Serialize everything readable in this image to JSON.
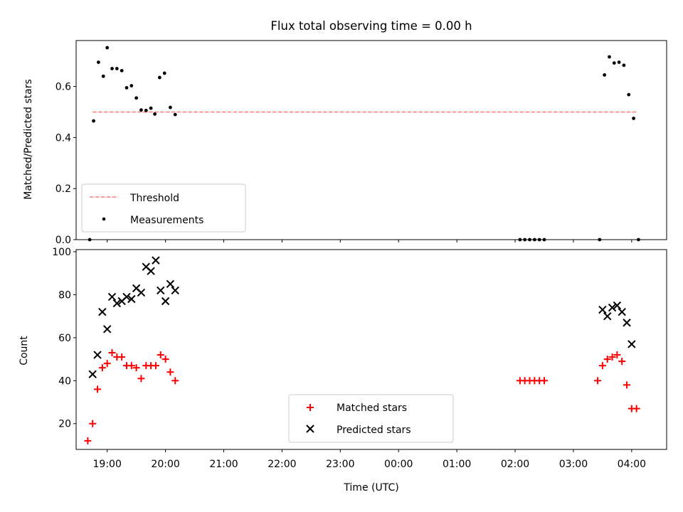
{
  "chart_data": [
    {
      "type": "scatter",
      "title": "Flux total observing time = 0.00 h",
      "ylabel": "Matched/Predicted stars",
      "xlabel": "",
      "xlim": [
        "18:28",
        "04:36"
      ],
      "ylim": [
        0,
        0.78
      ],
      "yticks": [
        "0.0",
        "0.2",
        "0.4",
        "0.6"
      ],
      "legend_position": "lower-left",
      "threshold": {
        "name": "Threshold",
        "value": 0.5,
        "x_start": "18:45",
        "x_end": "04:05",
        "color": "#ff7777"
      },
      "series": [
        {
          "name": "Measurements",
          "color": "#000000",
          "points": [
            [
              "18:42",
              0.0
            ],
            [
              "18:46",
              0.465
            ],
            [
              "18:51",
              0.695
            ],
            [
              "18:56",
              0.64
            ],
            [
              "19:00",
              0.752
            ],
            [
              "19:05",
              0.67
            ],
            [
              "19:10",
              0.67
            ],
            [
              "19:15",
              0.662
            ],
            [
              "19:20",
              0.595
            ],
            [
              "19:25",
              0.603
            ],
            [
              "19:30",
              0.555
            ],
            [
              "19:35",
              0.508
            ],
            [
              "19:40",
              0.506
            ],
            [
              "19:45",
              0.515
            ],
            [
              "19:49",
              0.492
            ],
            [
              "19:54",
              0.635
            ],
            [
              "19:59",
              0.652
            ],
            [
              "20:05",
              0.518
            ],
            [
              "20:10",
              0.49
            ],
            [
              "02:05",
              0.0
            ],
            [
              "02:10",
              0.0
            ],
            [
              "02:15",
              0.0
            ],
            [
              "02:20",
              0.0
            ],
            [
              "02:25",
              0.0
            ],
            [
              "02:30",
              0.0
            ],
            [
              "03:27",
              0.0
            ],
            [
              "03:32",
              0.645
            ],
            [
              "03:37",
              0.716
            ],
            [
              "03:42",
              0.692
            ],
            [
              "03:47",
              0.695
            ],
            [
              "03:52",
              0.683
            ],
            [
              "03:57",
              0.568
            ],
            [
              "04:02",
              0.475
            ],
            [
              "04:07",
              0.0
            ]
          ]
        }
      ]
    },
    {
      "type": "scatter",
      "title": "",
      "xlabel": "Time (UTC)",
      "ylabel": "Count",
      "xlim": [
        "18:28",
        "04:36"
      ],
      "ylim": [
        8,
        101
      ],
      "xticks": [
        "19:00",
        "20:00",
        "21:00",
        "22:00",
        "23:00",
        "00:00",
        "01:00",
        "02:00",
        "03:00",
        "04:00"
      ],
      "yticks": [
        "20",
        "40",
        "60",
        "80",
        "100"
      ],
      "legend_position": "lower-center",
      "series": [
        {
          "name": "Matched stars",
          "marker": "+",
          "color": "#ff0000",
          "points": [
            [
              "18:40",
              12
            ],
            [
              "18:45",
              20
            ],
            [
              "18:50",
              36
            ],
            [
              "18:55",
              46
            ],
            [
              "19:00",
              48
            ],
            [
              "19:05",
              53
            ],
            [
              "19:10",
              51
            ],
            [
              "19:15",
              51
            ],
            [
              "19:20",
              47
            ],
            [
              "19:25",
              47
            ],
            [
              "19:30",
              46
            ],
            [
              "19:35",
              41
            ],
            [
              "19:40",
              47
            ],
            [
              "19:45",
              47
            ],
            [
              "19:50",
              47
            ],
            [
              "19:55",
              52
            ],
            [
              "20:00",
              50
            ],
            [
              "20:05",
              44
            ],
            [
              "20:10",
              40
            ],
            [
              "02:05",
              40
            ],
            [
              "02:10",
              40
            ],
            [
              "02:15",
              40
            ],
            [
              "02:20",
              40
            ],
            [
              "02:25",
              40
            ],
            [
              "02:30",
              40
            ],
            [
              "03:25",
              40
            ],
            [
              "03:30",
              47
            ],
            [
              "03:35",
              50
            ],
            [
              "03:40",
              51
            ],
            [
              "03:45",
              52
            ],
            [
              "03:50",
              49
            ],
            [
              "03:55",
              38
            ],
            [
              "04:00",
              27
            ],
            [
              "04:05",
              27
            ]
          ]
        },
        {
          "name": "Predicted stars",
          "marker": "x",
          "color": "#000000",
          "points": [
            [
              "18:45",
              43
            ],
            [
              "18:50",
              52
            ],
            [
              "18:55",
              72
            ],
            [
              "19:00",
              64
            ],
            [
              "19:05",
              79
            ],
            [
              "19:10",
              76
            ],
            [
              "19:15",
              77
            ],
            [
              "19:20",
              79
            ],
            [
              "19:25",
              78
            ],
            [
              "19:30",
              83
            ],
            [
              "19:35",
              81
            ],
            [
              "19:40",
              93
            ],
            [
              "19:45",
              91
            ],
            [
              "19:50",
              96
            ],
            [
              "19:55",
              82
            ],
            [
              "20:00",
              77
            ],
            [
              "20:05",
              85
            ],
            [
              "20:10",
              82
            ],
            [
              "03:30",
              73
            ],
            [
              "03:35",
              70
            ],
            [
              "03:40",
              74
            ],
            [
              "03:45",
              75
            ],
            [
              "03:50",
              72
            ],
            [
              "03:55",
              67
            ],
            [
              "04:00",
              57
            ]
          ]
        }
      ]
    }
  ]
}
